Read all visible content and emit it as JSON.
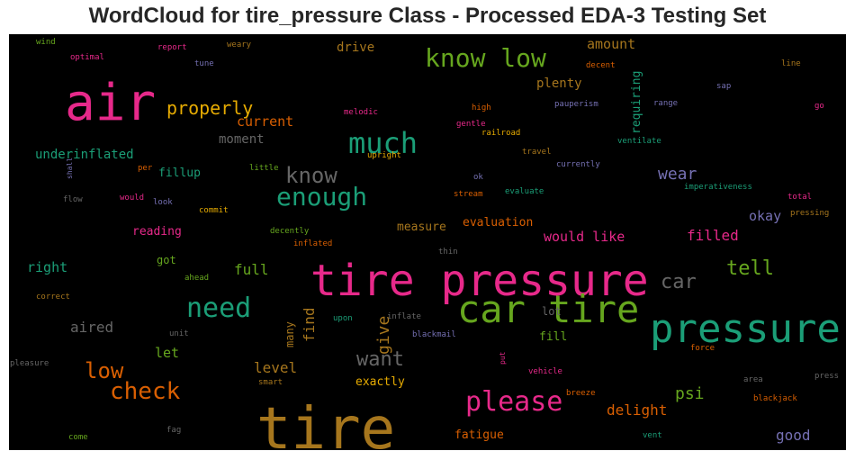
{
  "chart_data": {
    "type": "wordcloud",
    "title": "WordCloud for tire_pressure Class - Processed EDA-3 Testing Set",
    "background": "#000000",
    "palette": [
      "#e7298a",
      "#d95f02",
      "#1b9e77",
      "#66a61e",
      "#e6ab02",
      "#a6761d",
      "#7570b3",
      "#666666"
    ],
    "words": [
      {
        "text": "tire pressure",
        "color": "#e7298a",
        "weight": 48
      },
      {
        "text": "tire",
        "color": "#a6761d",
        "weight": 64
      },
      {
        "text": "air",
        "color": "#e7298a",
        "weight": 56
      },
      {
        "text": "pressure",
        "color": "#1b9e77",
        "weight": 44
      },
      {
        "text": "car tire",
        "color": "#66a61e",
        "weight": 42
      },
      {
        "text": "much",
        "color": "#1b9e77",
        "weight": 32
      },
      {
        "text": "know low",
        "color": "#66a61e",
        "weight": 28
      },
      {
        "text": "please",
        "color": "#e7298a",
        "weight": 30
      },
      {
        "text": "enough",
        "color": "#1b9e77",
        "weight": 28
      },
      {
        "text": "need",
        "color": "#1b9e77",
        "weight": 30
      },
      {
        "text": "know",
        "color": "#666666",
        "weight": 24
      },
      {
        "text": "check",
        "color": "#d95f02",
        "weight": 26
      },
      {
        "text": "low",
        "color": "#d95f02",
        "weight": 24
      },
      {
        "text": "want",
        "color": "#666666",
        "weight": 22
      },
      {
        "text": "car",
        "color": "#666666",
        "weight": 22
      },
      {
        "text": "tell",
        "color": "#66a61e",
        "weight": 22
      },
      {
        "text": "properly",
        "color": "#e6ab02",
        "weight": 20
      },
      {
        "text": "wear",
        "color": "#7570b3",
        "weight": 18
      },
      {
        "text": "psi",
        "color": "#66a61e",
        "weight": 18
      },
      {
        "text": "give",
        "color": "#a6761d",
        "weight": 18
      },
      {
        "text": "find",
        "color": "#a6761d",
        "weight": 16
      },
      {
        "text": "delight",
        "color": "#d95f02",
        "weight": 16
      },
      {
        "text": "filled",
        "color": "#e7298a",
        "weight": 16
      },
      {
        "text": "good",
        "color": "#7570b3",
        "weight": 16
      },
      {
        "text": "level",
        "color": "#a6761d",
        "weight": 16
      },
      {
        "text": "aired",
        "color": "#666666",
        "weight": 16
      },
      {
        "text": "full",
        "color": "#66a61e",
        "weight": 16
      },
      {
        "text": "right",
        "color": "#1b9e77",
        "weight": 15
      },
      {
        "text": "let",
        "color": "#66a61e",
        "weight": 15
      },
      {
        "text": "would like",
        "color": "#e7298a",
        "weight": 15
      },
      {
        "text": "okay",
        "color": "#7570b3",
        "weight": 15
      },
      {
        "text": "current",
        "color": "#d95f02",
        "weight": 15
      },
      {
        "text": "moment",
        "color": "#666666",
        "weight": 14
      },
      {
        "text": "amount",
        "color": "#a6761d",
        "weight": 15
      },
      {
        "text": "plenty",
        "color": "#a6761d",
        "weight": 14
      },
      {
        "text": "drive",
        "color": "#a6761d",
        "weight": 14
      },
      {
        "text": "requiring",
        "color": "#1b9e77",
        "weight": 13
      },
      {
        "text": "underinflated",
        "color": "#1b9e77",
        "weight": 14
      },
      {
        "text": "fillup",
        "color": "#1b9e77",
        "weight": 13
      },
      {
        "text": "reading",
        "color": "#e7298a",
        "weight": 13
      },
      {
        "text": "measure",
        "color": "#a6761d",
        "weight": 13
      },
      {
        "text": "evaluation",
        "color": "#d95f02",
        "weight": 13
      },
      {
        "text": "exactly",
        "color": "#e6ab02",
        "weight": 13
      },
      {
        "text": "fatigue",
        "color": "#d95f02",
        "weight": 13
      },
      {
        "text": "fill",
        "color": "#66a61e",
        "weight": 13
      },
      {
        "text": "lot",
        "color": "#666666",
        "weight": 12
      },
      {
        "text": "got",
        "color": "#66a61e",
        "weight": 12
      },
      {
        "text": "many",
        "color": "#a6761d",
        "weight": 12
      },
      {
        "text": "wind",
        "color": "#66a61e",
        "weight": 9
      },
      {
        "text": "report",
        "color": "#e7298a",
        "weight": 9
      },
      {
        "text": "weary",
        "color": "#a6761d",
        "weight": 9
      },
      {
        "text": "optimal",
        "color": "#e7298a",
        "weight": 9
      },
      {
        "text": "tune",
        "color": "#7570b3",
        "weight": 9
      },
      {
        "text": "decent",
        "color": "#d95f02",
        "weight": 9
      },
      {
        "text": "line",
        "color": "#a6761d",
        "weight": 9
      },
      {
        "text": "sap",
        "color": "#7570b3",
        "weight": 9
      },
      {
        "text": "go",
        "color": "#e7298a",
        "weight": 9
      },
      {
        "text": "melodic",
        "color": "#e7298a",
        "weight": 9
      },
      {
        "text": "pauperism",
        "color": "#7570b3",
        "weight": 9
      },
      {
        "text": "range",
        "color": "#7570b3",
        "weight": 9
      },
      {
        "text": "high",
        "color": "#d95f02",
        "weight": 9
      },
      {
        "text": "gentle",
        "color": "#e7298a",
        "weight": 9
      },
      {
        "text": "railroad",
        "color": "#e6ab02",
        "weight": 9
      },
      {
        "text": "ventilate",
        "color": "#1b9e77",
        "weight": 9
      },
      {
        "text": "travel",
        "color": "#a6761d",
        "weight": 9
      },
      {
        "text": "currently",
        "color": "#7570b3",
        "weight": 9
      },
      {
        "text": "per",
        "color": "#d95f02",
        "weight": 9
      },
      {
        "text": "little",
        "color": "#66a61e",
        "weight": 9
      },
      {
        "text": "upright",
        "color": "#e6ab02",
        "weight": 9
      },
      {
        "text": "shall",
        "color": "#7570b3",
        "weight": 8
      },
      {
        "text": "ok",
        "color": "#7570b3",
        "weight": 9
      },
      {
        "text": "imperativeness",
        "color": "#1b9e77",
        "weight": 9
      },
      {
        "text": "flow",
        "color": "#666666",
        "weight": 9
      },
      {
        "text": "would",
        "color": "#e7298a",
        "weight": 9
      },
      {
        "text": "look",
        "color": "#7570b3",
        "weight": 9
      },
      {
        "text": "stream",
        "color": "#d95f02",
        "weight": 9
      },
      {
        "text": "evaluate",
        "color": "#1b9e77",
        "weight": 9
      },
      {
        "text": "total",
        "color": "#e7298a",
        "weight": 9
      },
      {
        "text": "commit",
        "color": "#e6ab02",
        "weight": 9
      },
      {
        "text": "pressing",
        "color": "#a6761d",
        "weight": 9
      },
      {
        "text": "decently",
        "color": "#66a61e",
        "weight": 9
      },
      {
        "text": "inflated",
        "color": "#d95f02",
        "weight": 9
      },
      {
        "text": "thin",
        "color": "#666666",
        "weight": 9
      },
      {
        "text": "ahead",
        "color": "#66a61e",
        "weight": 9
      },
      {
        "text": "correct",
        "color": "#a6761d",
        "weight": 9
      },
      {
        "text": "upon",
        "color": "#1b9e77",
        "weight": 9
      },
      {
        "text": "inflate",
        "color": "#666666",
        "weight": 9
      },
      {
        "text": "unit",
        "color": "#666666",
        "weight": 9
      },
      {
        "text": "blackmail",
        "color": "#7570b3",
        "weight": 9
      },
      {
        "text": "force",
        "color": "#d95f02",
        "weight": 9
      },
      {
        "text": "pleasure",
        "color": "#666666",
        "weight": 9
      },
      {
        "text": "put",
        "color": "#e7298a",
        "weight": 8
      },
      {
        "text": "vehicle",
        "color": "#e7298a",
        "weight": 9
      },
      {
        "text": "press",
        "color": "#666666",
        "weight": 9
      },
      {
        "text": "smart",
        "color": "#a6761d",
        "weight": 9
      },
      {
        "text": "area",
        "color": "#666666",
        "weight": 9
      },
      {
        "text": "breeze",
        "color": "#d95f02",
        "weight": 9
      },
      {
        "text": "blackjack",
        "color": "#d95f02",
        "weight": 9
      },
      {
        "text": "fag",
        "color": "#666666",
        "weight": 9
      },
      {
        "text": "come",
        "color": "#66a61e",
        "weight": 9
      },
      {
        "text": "vent",
        "color": "#1b9e77",
        "weight": 9
      }
    ]
  }
}
